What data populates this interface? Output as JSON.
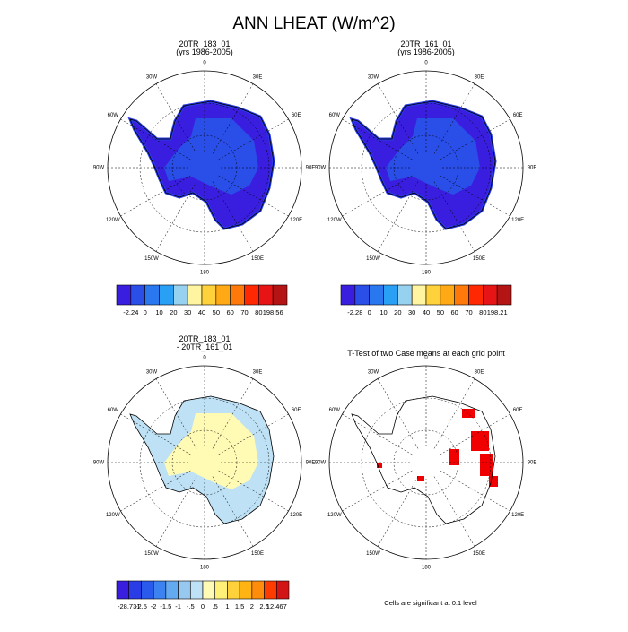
{
  "title": "ANN LHEAT (W/m^2)",
  "lon_labels": [
    "0",
    "30E",
    "60E",
    "90E",
    "120E",
    "150E",
    "180",
    "150W",
    "120W",
    "90W",
    "60W",
    "30W"
  ],
  "panels": [
    {
      "title": [
        "20TR_183_01",
        "(yrs 1986-2005)"
      ]
    },
    {
      "title": [
        "20TR_161_01",
        "(yrs 1986-2005)"
      ]
    },
    {
      "title": [
        "20TR_183_01",
        "- 20TR_161_01"
      ]
    },
    {
      "title": [
        "T-Test of two Case means at each grid point"
      ]
    }
  ],
  "colorbars": [
    {
      "colors": [
        "#3a1ee0",
        "#2a4ee8",
        "#2a78f0",
        "#2aa0f5",
        "#96d2f0",
        "#fff5a0",
        "#ffd23c",
        "#ffaa14",
        "#ff780a",
        "#ff2800",
        "#e61414",
        "#b41414"
      ],
      "labels": [
        "-2.24",
        "0",
        "10",
        "20",
        "30",
        "40",
        "50",
        "60",
        "70",
        "80",
        "198.56"
      ]
    },
    {
      "colors": [
        "#3a1ee0",
        "#2a4ee8",
        "#2a78f0",
        "#2aa0f5",
        "#96d2f0",
        "#fff5a0",
        "#ffd23c",
        "#ffaa14",
        "#ff780a",
        "#ff2800",
        "#e61414",
        "#b41414"
      ],
      "labels": [
        "-2.28",
        "0",
        "10",
        "20",
        "30",
        "40",
        "50",
        "60",
        "70",
        "80",
        "198.21"
      ]
    },
    {
      "colors": [
        "#3a1ee0",
        "#2a3ce6",
        "#2a5aec",
        "#3c82f0",
        "#64aaf0",
        "#96c8f0",
        "#bee1f5",
        "#fffab4",
        "#fff078",
        "#ffd23c",
        "#ffb414",
        "#ff8c0a",
        "#ff3c00",
        "#d21414"
      ],
      "labels": [
        "-28.731",
        "-2.5",
        "-2",
        "-1.5",
        "-1",
        "-.5",
        "0",
        ".5",
        "1",
        "1.5",
        "2",
        "2.5",
        "12.467"
      ]
    }
  ],
  "footnote": "Cells are significant at 0.1 level"
}
